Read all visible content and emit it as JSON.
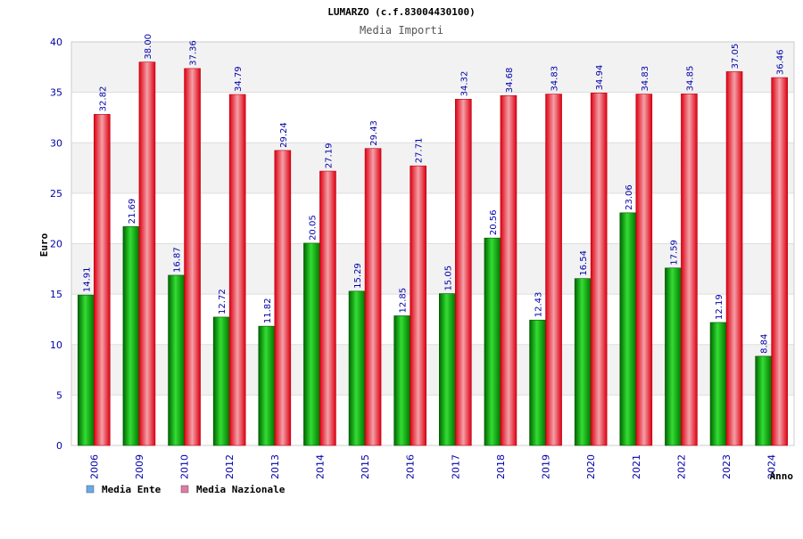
{
  "chart_data": {
    "type": "bar",
    "title": "LUMARZO (c.f.83004430100)",
    "subtitle": "Media Importi",
    "xlabel": "Anno",
    "ylabel": "Euro",
    "ylim": [
      0,
      40
    ],
    "yticks": [
      "0",
      "5",
      "10",
      "15",
      "20",
      "25",
      "30",
      "35",
      "40"
    ],
    "grid": "horizontal bands",
    "legend_position": "bottom-left",
    "categories": [
      "2006",
      "2009",
      "2010",
      "2012",
      "2013",
      "2014",
      "2015",
      "2016",
      "2017",
      "2018",
      "2019",
      "2020",
      "2021",
      "2022",
      "2023",
      "2024"
    ],
    "series": [
      {
        "name": "Media Ente",
        "legend_color": "#66aaee",
        "bar_color": "#00b000",
        "values": [
          14.91,
          21.69,
          16.87,
          12.72,
          11.82,
          20.05,
          15.29,
          12.85,
          15.05,
          20.56,
          12.43,
          16.54,
          23.06,
          17.59,
          12.19,
          8.84
        ],
        "labels": [
          "14.91",
          "21.69",
          "16.87",
          "12.72",
          "11.82",
          "20.05",
          "15.29",
          "12.85",
          "15.05",
          "20.56",
          "12.43",
          "16.54",
          "23.06",
          "17.59",
          "12.19",
          "8.84"
        ]
      },
      {
        "name": "Media Nazionale",
        "legend_color": "#e07aa8",
        "bar_color": "#ee1122",
        "values": [
          32.82,
          38.0,
          37.36,
          34.79,
          29.24,
          27.19,
          29.43,
          27.71,
          34.32,
          34.68,
          34.83,
          34.94,
          34.83,
          34.85,
          37.05,
          36.46
        ],
        "labels": [
          "32.82",
          "38.00",
          "37.36",
          "34.79",
          "29.24",
          "27.19",
          "29.43",
          "27.71",
          "34.32",
          "34.68",
          "34.83",
          "34.94",
          "34.83",
          "34.85",
          "37.05",
          "36.46"
        ]
      }
    ]
  }
}
